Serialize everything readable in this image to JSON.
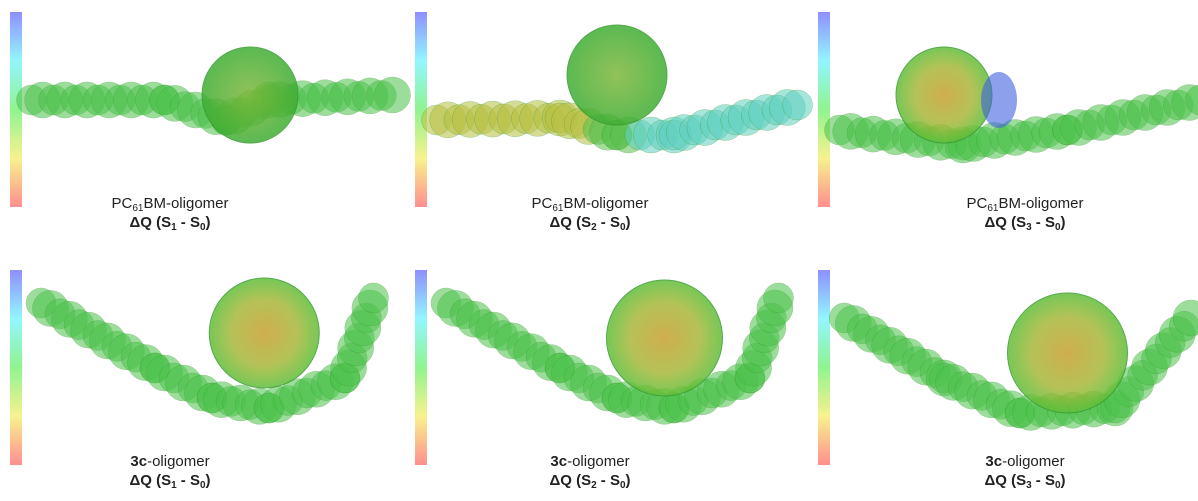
{
  "panels": [
    {
      "molecule": {
        "prefix": "PC",
        "subscript": "61",
        "suffix": "BM-oligomer"
      },
      "delta": {
        "text": "ΔQ (S",
        "sub1": "1",
        "mid": " - S",
        "sub2": "0",
        "end": ")"
      }
    },
    {
      "molecule": {
        "prefix": "PC",
        "subscript": "61",
        "suffix": "BM-oligomer"
      },
      "delta": {
        "text": "ΔQ (S",
        "sub1": "2",
        "mid": " - S",
        "sub2": "0",
        "end": ")"
      }
    },
    {
      "molecule": {
        "prefix": "PC",
        "subscript": "61",
        "suffix": "BM-oligomer"
      },
      "delta": {
        "text": "ΔQ (S",
        "sub1": "3",
        "mid": " - S",
        "sub2": "0",
        "end": ")"
      }
    },
    {
      "molecule": {
        "bold": "3c",
        "suffix": "-oligomer"
      },
      "delta": {
        "text": "ΔQ (S",
        "sub1": "1",
        "mid": " - S",
        "sub2": "0",
        "end": ")"
      }
    },
    {
      "molecule": {
        "bold": "3c",
        "suffix": "-oligomer"
      },
      "delta": {
        "text": "ΔQ (S",
        "sub1": "2",
        "mid": " - S",
        "sub2": "0",
        "end": ")"
      }
    },
    {
      "molecule": {
        "bold": "3c",
        "suffix": "-oligomer"
      },
      "delta": {
        "text": "ΔQ (S",
        "sub1": "3",
        "mid": " - S",
        "sub2": "0",
        "end": ")"
      }
    }
  ]
}
